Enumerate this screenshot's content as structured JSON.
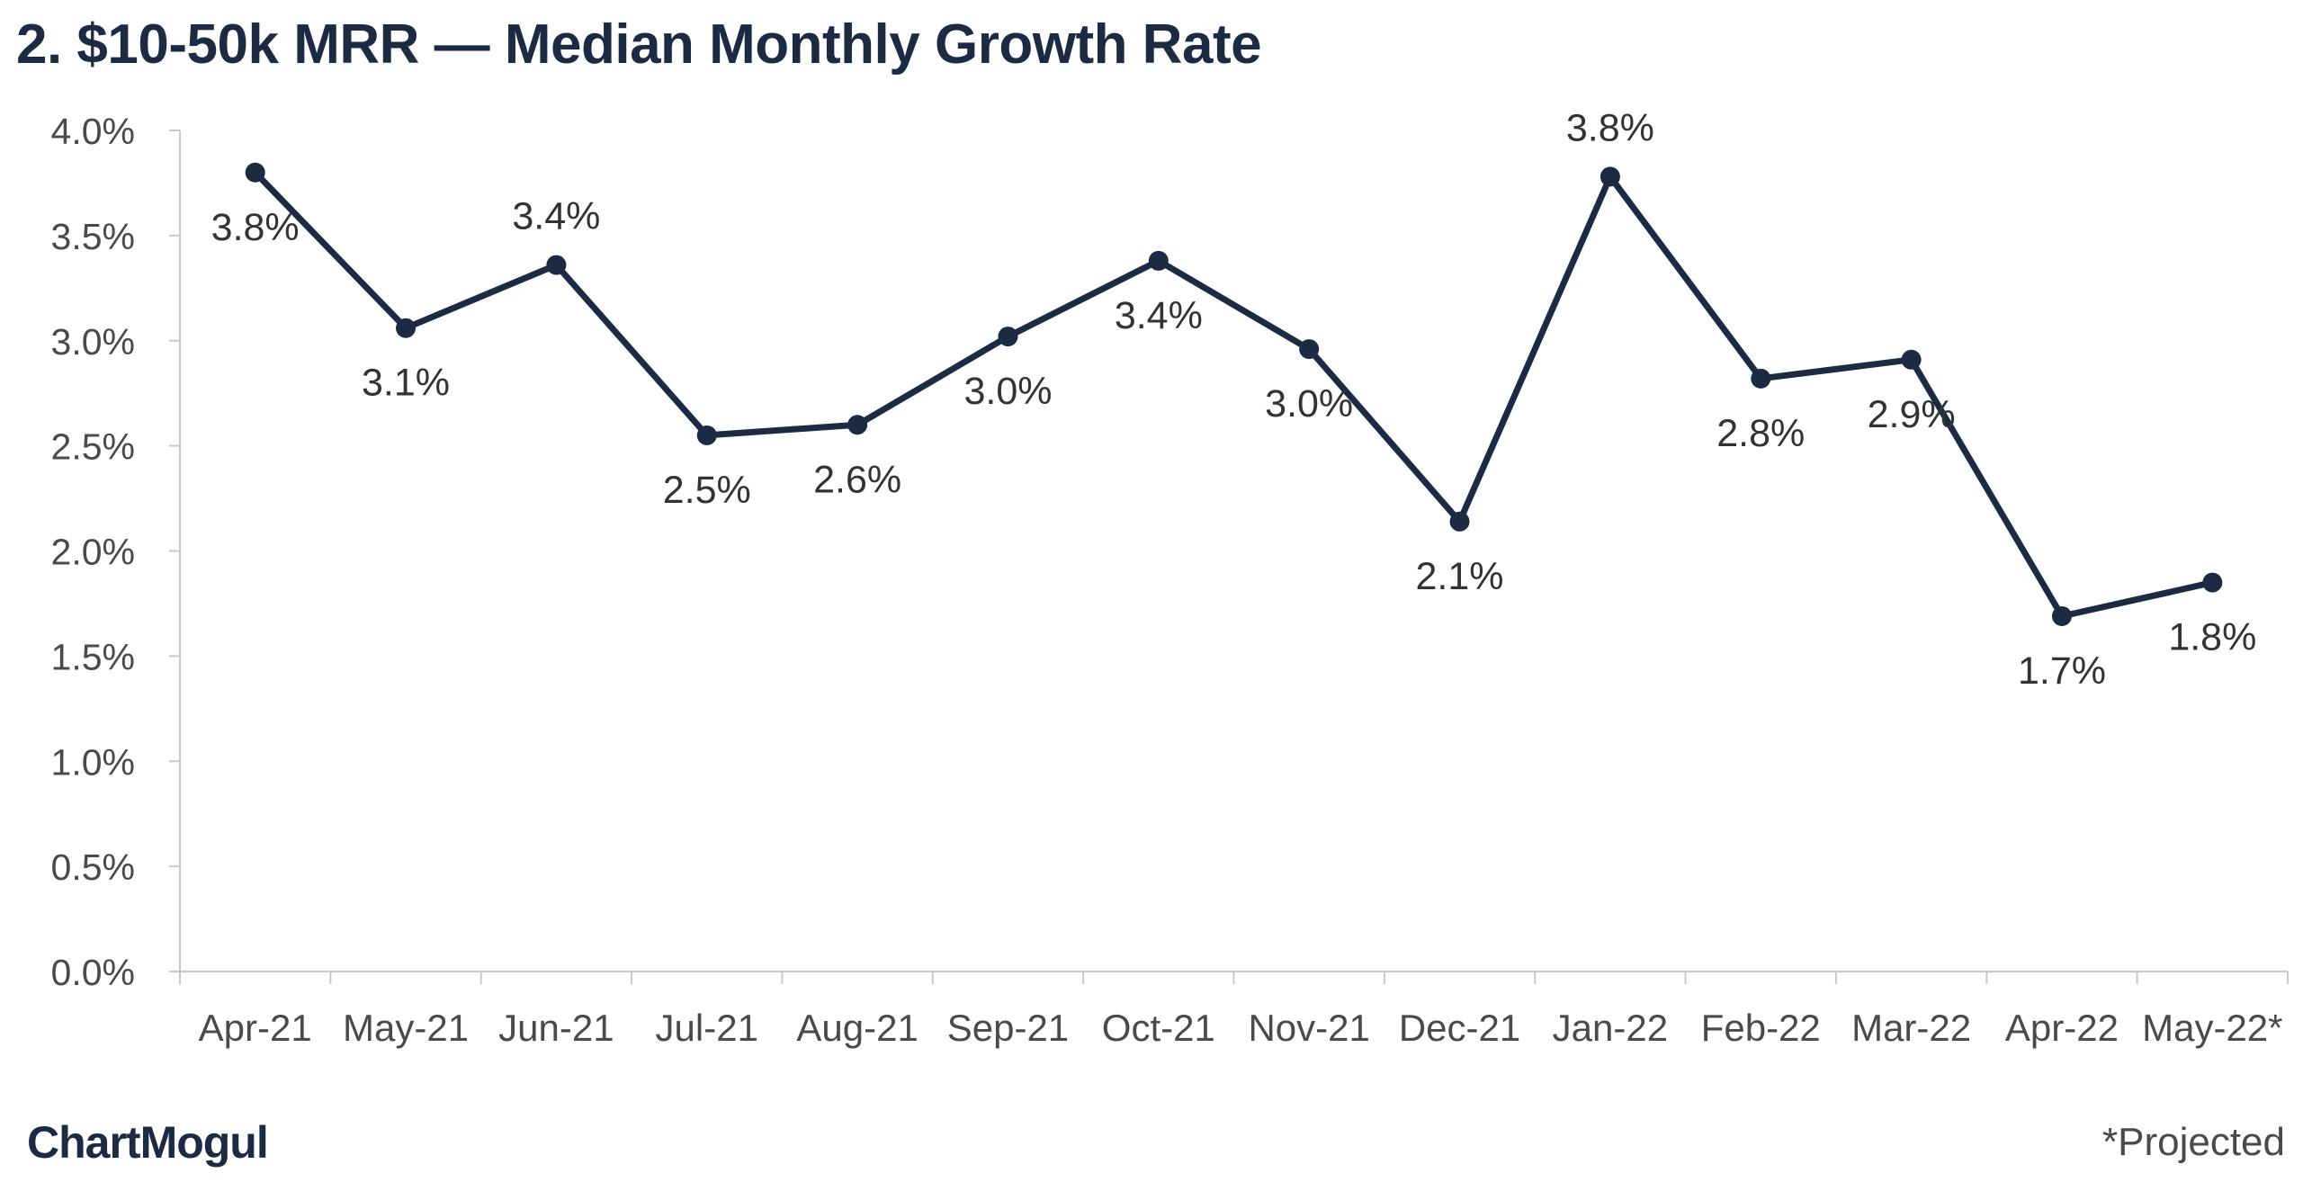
{
  "chart_data": {
    "type": "line",
    "title": "2. $10-50k MRR — Median Monthly Growth Rate",
    "categories": [
      "Apr-21",
      "May-21",
      "Jun-21",
      "Jul-21",
      "Aug-21",
      "Sep-21",
      "Oct-21",
      "Nov-21",
      "Dec-21",
      "Jan-22",
      "Feb-22",
      "Mar-22",
      "Apr-22",
      "May-22*"
    ],
    "series": [
      {
        "values": [
          3.8,
          3.06,
          3.36,
          2.55,
          2.6,
          3.02,
          3.38,
          2.96,
          2.14,
          3.78,
          2.82,
          2.91,
          1.69,
          1.85
        ],
        "data_labels": [
          "3.8%",
          "3.1%",
          "3.4%",
          "2.5%",
          "2.6%",
          "3.0%",
          "3.4%",
          "3.0%",
          "2.1%",
          "3.8%",
          "2.8%",
          "2.9%",
          "1.7%",
          "1.8%"
        ],
        "label_positions": [
          "below",
          "below",
          "above",
          "below",
          "below",
          "below",
          "below",
          "below",
          "below",
          "above",
          "below",
          "below",
          "below",
          "below"
        ]
      }
    ],
    "y_ticks": [
      "0.0%",
      "0.5%",
      "1.0%",
      "1.5%",
      "2.0%",
      "2.5%",
      "3.0%",
      "3.5%",
      "4.0%"
    ],
    "ylim": [
      0,
      4
    ],
    "xlabel": "",
    "ylabel": "",
    "grid": false,
    "legend": "none",
    "colors": {
      "line": "#1b2b44",
      "marker": "#1b2b44",
      "axis": "#c8c8c8",
      "tick_text": "#4a4a4a",
      "data_label": "#333333",
      "title": "#1b2b44"
    }
  },
  "branding": {
    "logo_text": "ChartMogul"
  },
  "footnote": "*Projected"
}
